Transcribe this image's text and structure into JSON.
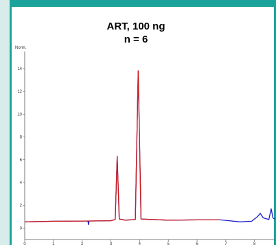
{
  "chart_data": {
    "type": "line",
    "title": "ART, 100 ng",
    "subtitle": "n = 6",
    "ylabel": "Norm.",
    "xlabel": "",
    "xlim": [
      0,
      8.7
    ],
    "ylim": [
      -1,
      15.5
    ],
    "x_ticks": [
      "0",
      "1",
      "2",
      "3",
      "4",
      "5",
      "6",
      "7",
      "8"
    ],
    "y_ticks": [
      "0",
      "2",
      "4",
      "6",
      "8",
      "10",
      "12",
      "14"
    ],
    "grid": false,
    "series": [
      {
        "color": "#1a1acc",
        "points": [
          [
            0,
            0.55
          ],
          [
            1.0,
            0.6
          ],
          [
            2.0,
            0.62
          ],
          [
            2.2,
            0.62
          ],
          [
            2.22,
            0.3
          ],
          [
            2.24,
            0.62
          ],
          [
            3.0,
            0.65
          ],
          [
            3.15,
            0.75
          ],
          [
            3.22,
            6.3
          ],
          [
            3.29,
            0.8
          ],
          [
            3.5,
            0.7
          ],
          [
            3.85,
            0.75
          ],
          [
            3.95,
            13.8
          ],
          [
            4.05,
            0.8
          ],
          [
            5.0,
            0.7
          ],
          [
            6.0,
            0.72
          ],
          [
            6.8,
            0.72
          ],
          [
            7.0,
            0.68
          ],
          [
            7.5,
            0.55
          ],
          [
            7.9,
            0.6
          ],
          [
            8.1,
            1.0
          ],
          [
            8.2,
            1.3
          ],
          [
            8.3,
            0.9
          ],
          [
            8.5,
            0.75
          ],
          [
            8.58,
            1.7
          ],
          [
            8.64,
            0.9
          ],
          [
            8.7,
            0.8
          ]
        ]
      },
      {
        "color": "#cc1a1a",
        "points": [
          [
            0,
            0.55
          ],
          [
            1.0,
            0.6
          ],
          [
            2.0,
            0.62
          ],
          [
            3.0,
            0.65
          ],
          [
            3.15,
            0.75
          ],
          [
            3.22,
            6.3
          ],
          [
            3.29,
            0.8
          ],
          [
            3.5,
            0.7
          ],
          [
            3.85,
            0.75
          ],
          [
            3.95,
            13.8
          ],
          [
            4.05,
            0.8
          ],
          [
            5.0,
            0.7
          ],
          [
            6.0,
            0.72
          ],
          [
            6.8,
            0.72
          ]
        ]
      }
    ]
  },
  "colors": {
    "frame": "#1aa39a",
    "frame_light": "#d8ecea"
  }
}
